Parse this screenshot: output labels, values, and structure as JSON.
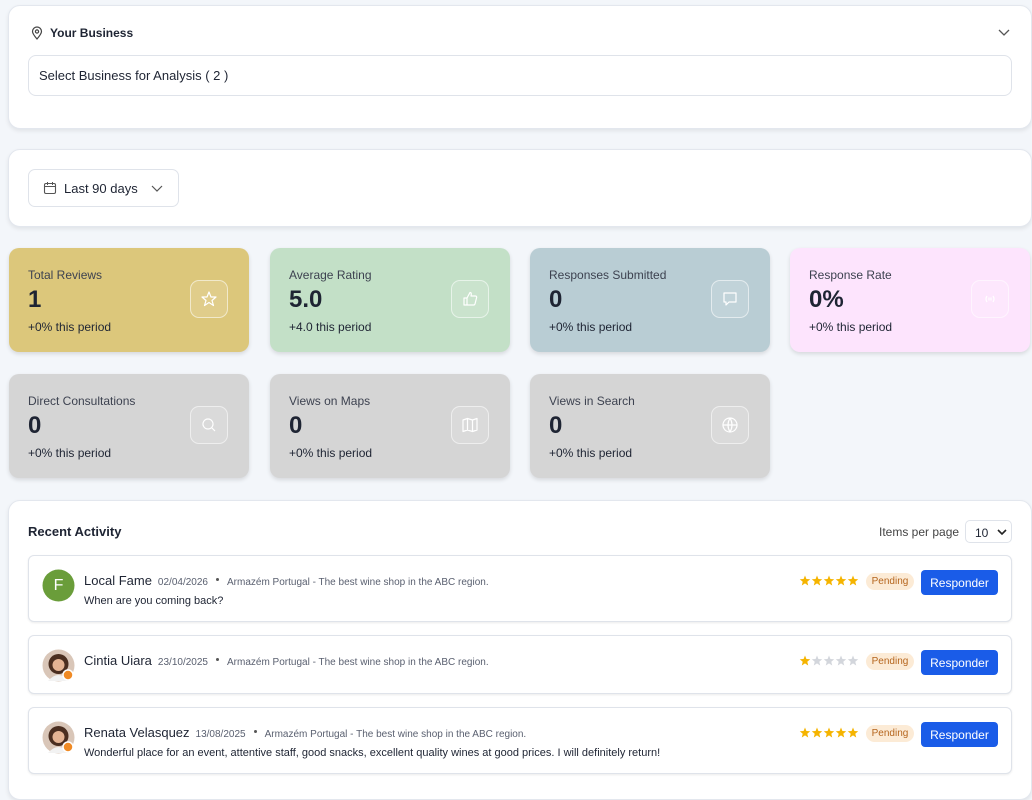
{
  "business_selector": {
    "title": "Your Business",
    "select_placeholder": "Select Business for Analysis ( 2 )"
  },
  "date_filter": {
    "label": "Last 90 days"
  },
  "stats": [
    {
      "label": "Total Reviews",
      "value": "1",
      "change": "+0% this period"
    },
    {
      "label": "Average Rating",
      "value": "5.0",
      "change": "+4.0 this period"
    },
    {
      "label": "Responses Submitted",
      "value": "0",
      "change": "+0% this period"
    },
    {
      "label": "Response Rate",
      "value": "0%",
      "change": "+0% this period"
    },
    {
      "label": "Direct Consultations",
      "value": "0",
      "change": "+0% this period"
    },
    {
      "label": "Views on Maps",
      "value": "0",
      "change": "+0% this period"
    },
    {
      "label": "Views in Search",
      "value": "0",
      "change": "+0% this period"
    }
  ],
  "recent_activity": {
    "title": "Recent Activity",
    "items_per_page_label": "Items per page",
    "items_per_page": 10,
    "reviews": [
      {
        "avatar_letter": "F",
        "name": "Local Fame",
        "date": "02/04/2026",
        "business": "Armazém Portugal - The best wine shop in the ABC region.",
        "comment": "When are you coming back?",
        "rating": 5,
        "status": "Pending",
        "action": "Responder"
      },
      {
        "name": "Cintia Uiara",
        "date": "23/10/2025",
        "business": "Armazém Portugal - The best wine shop in the ABC region.",
        "rating": 1,
        "status": "Pending",
        "action": "Responder"
      },
      {
        "name": "Renata Velasquez",
        "date": "13/08/2025",
        "business": "Armazém Portugal - The best wine shop in the ABC region.",
        "comment": "Wonderful place for an event, attentive staff, good snacks, excellent quality wines at good prices. I will definitely return!",
        "rating": 5,
        "status": "Pending",
        "action": "Responder"
      }
    ]
  }
}
